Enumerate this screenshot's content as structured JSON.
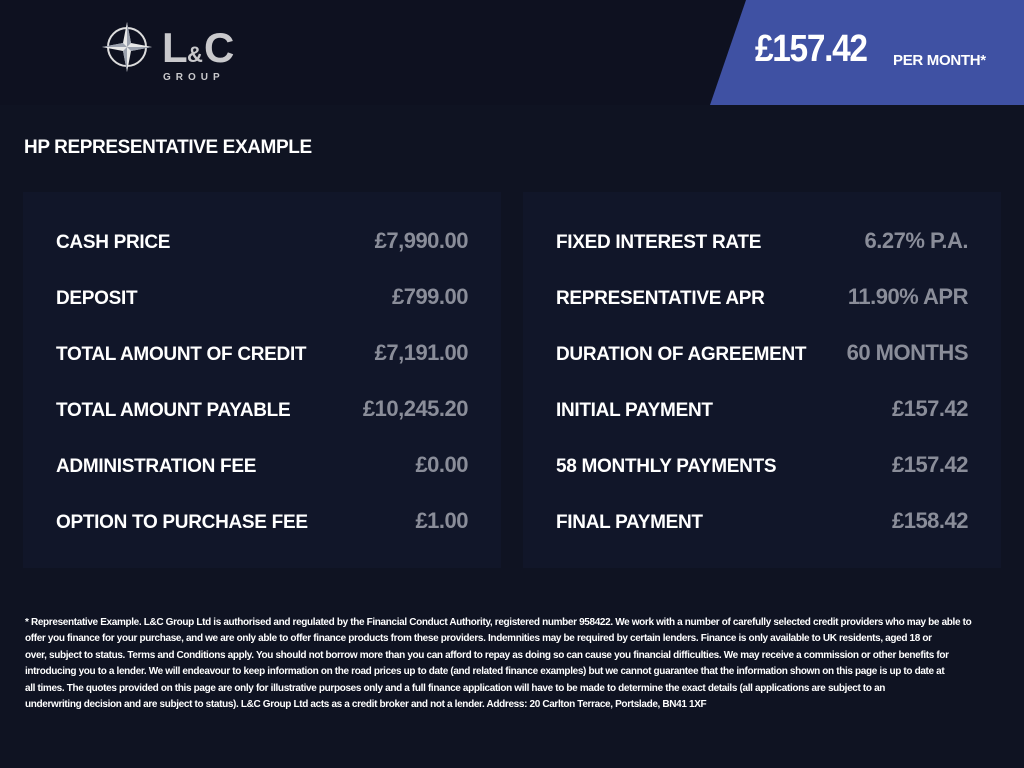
{
  "logo": {
    "brand": "L&C",
    "sub": "GROUP"
  },
  "price_banner": {
    "amount": "£157.42",
    "suffix": "PER MONTH*",
    "color": "#3f51a3"
  },
  "title": "HP REPRESENTATIVE EXAMPLE",
  "left_panel": [
    {
      "label": "CASH PRICE",
      "value": "£7,990.00"
    },
    {
      "label": "DEPOSIT",
      "value": "£799.00"
    },
    {
      "label": "TOTAL AMOUNT OF CREDIT",
      "value": "£7,191.00"
    },
    {
      "label": "TOTAL AMOUNT PAYABLE",
      "value": "£10,245.20"
    },
    {
      "label": "ADMINISTRATION FEE",
      "value": "£0.00"
    },
    {
      "label": "OPTION TO PURCHASE FEE",
      "value": "£1.00"
    }
  ],
  "right_panel": [
    {
      "label": "FIXED INTEREST RATE",
      "value": "6.27% P.A."
    },
    {
      "label": "REPRESENTATIVE APR",
      "value": "11.90% APR"
    },
    {
      "label": "DURATION OF AGREEMENT",
      "value": "60 MONTHS"
    },
    {
      "label": "INITIAL PAYMENT",
      "value": "£157.42"
    },
    {
      "label": "58 MONTHLY PAYMENTS",
      "value": "£157.42"
    },
    {
      "label": "FINAL PAYMENT",
      "value": "£158.42"
    }
  ],
  "disclaimer_lines": [
    "* Representative Example. L&C Group Ltd is authorised and regulated by the Financial Conduct Authority, registered number 958422. We work with a number of carefully selected credit providers who may be able to",
    "offer you finance for your purchase, and we are only able to offer finance products from these providers. Indemnities may be required by certain lenders. Finance is only available to UK residents, aged 18 or",
    "over, subject to status. Terms and Conditions apply. You should not borrow more than you can afford to repay as doing so can cause you financial difficulties. We may receive a commission or other benefits for",
    "introducing you to a lender. We will endeavour to keep information on the road prices up to date (and related finance examples) but we cannot guarantee that the information shown on this page is up to date at",
    "all times. The quotes provided on this page are only for illustrative purposes only and a full finance application will have to be made to determine the exact details (all applications are subject to an",
    "underwriting decision and are subject to status). L&C Group Ltd acts as a credit broker and not a lender. Address: 20 Carlton Terrace, Portslade, BN41 1XF"
  ]
}
